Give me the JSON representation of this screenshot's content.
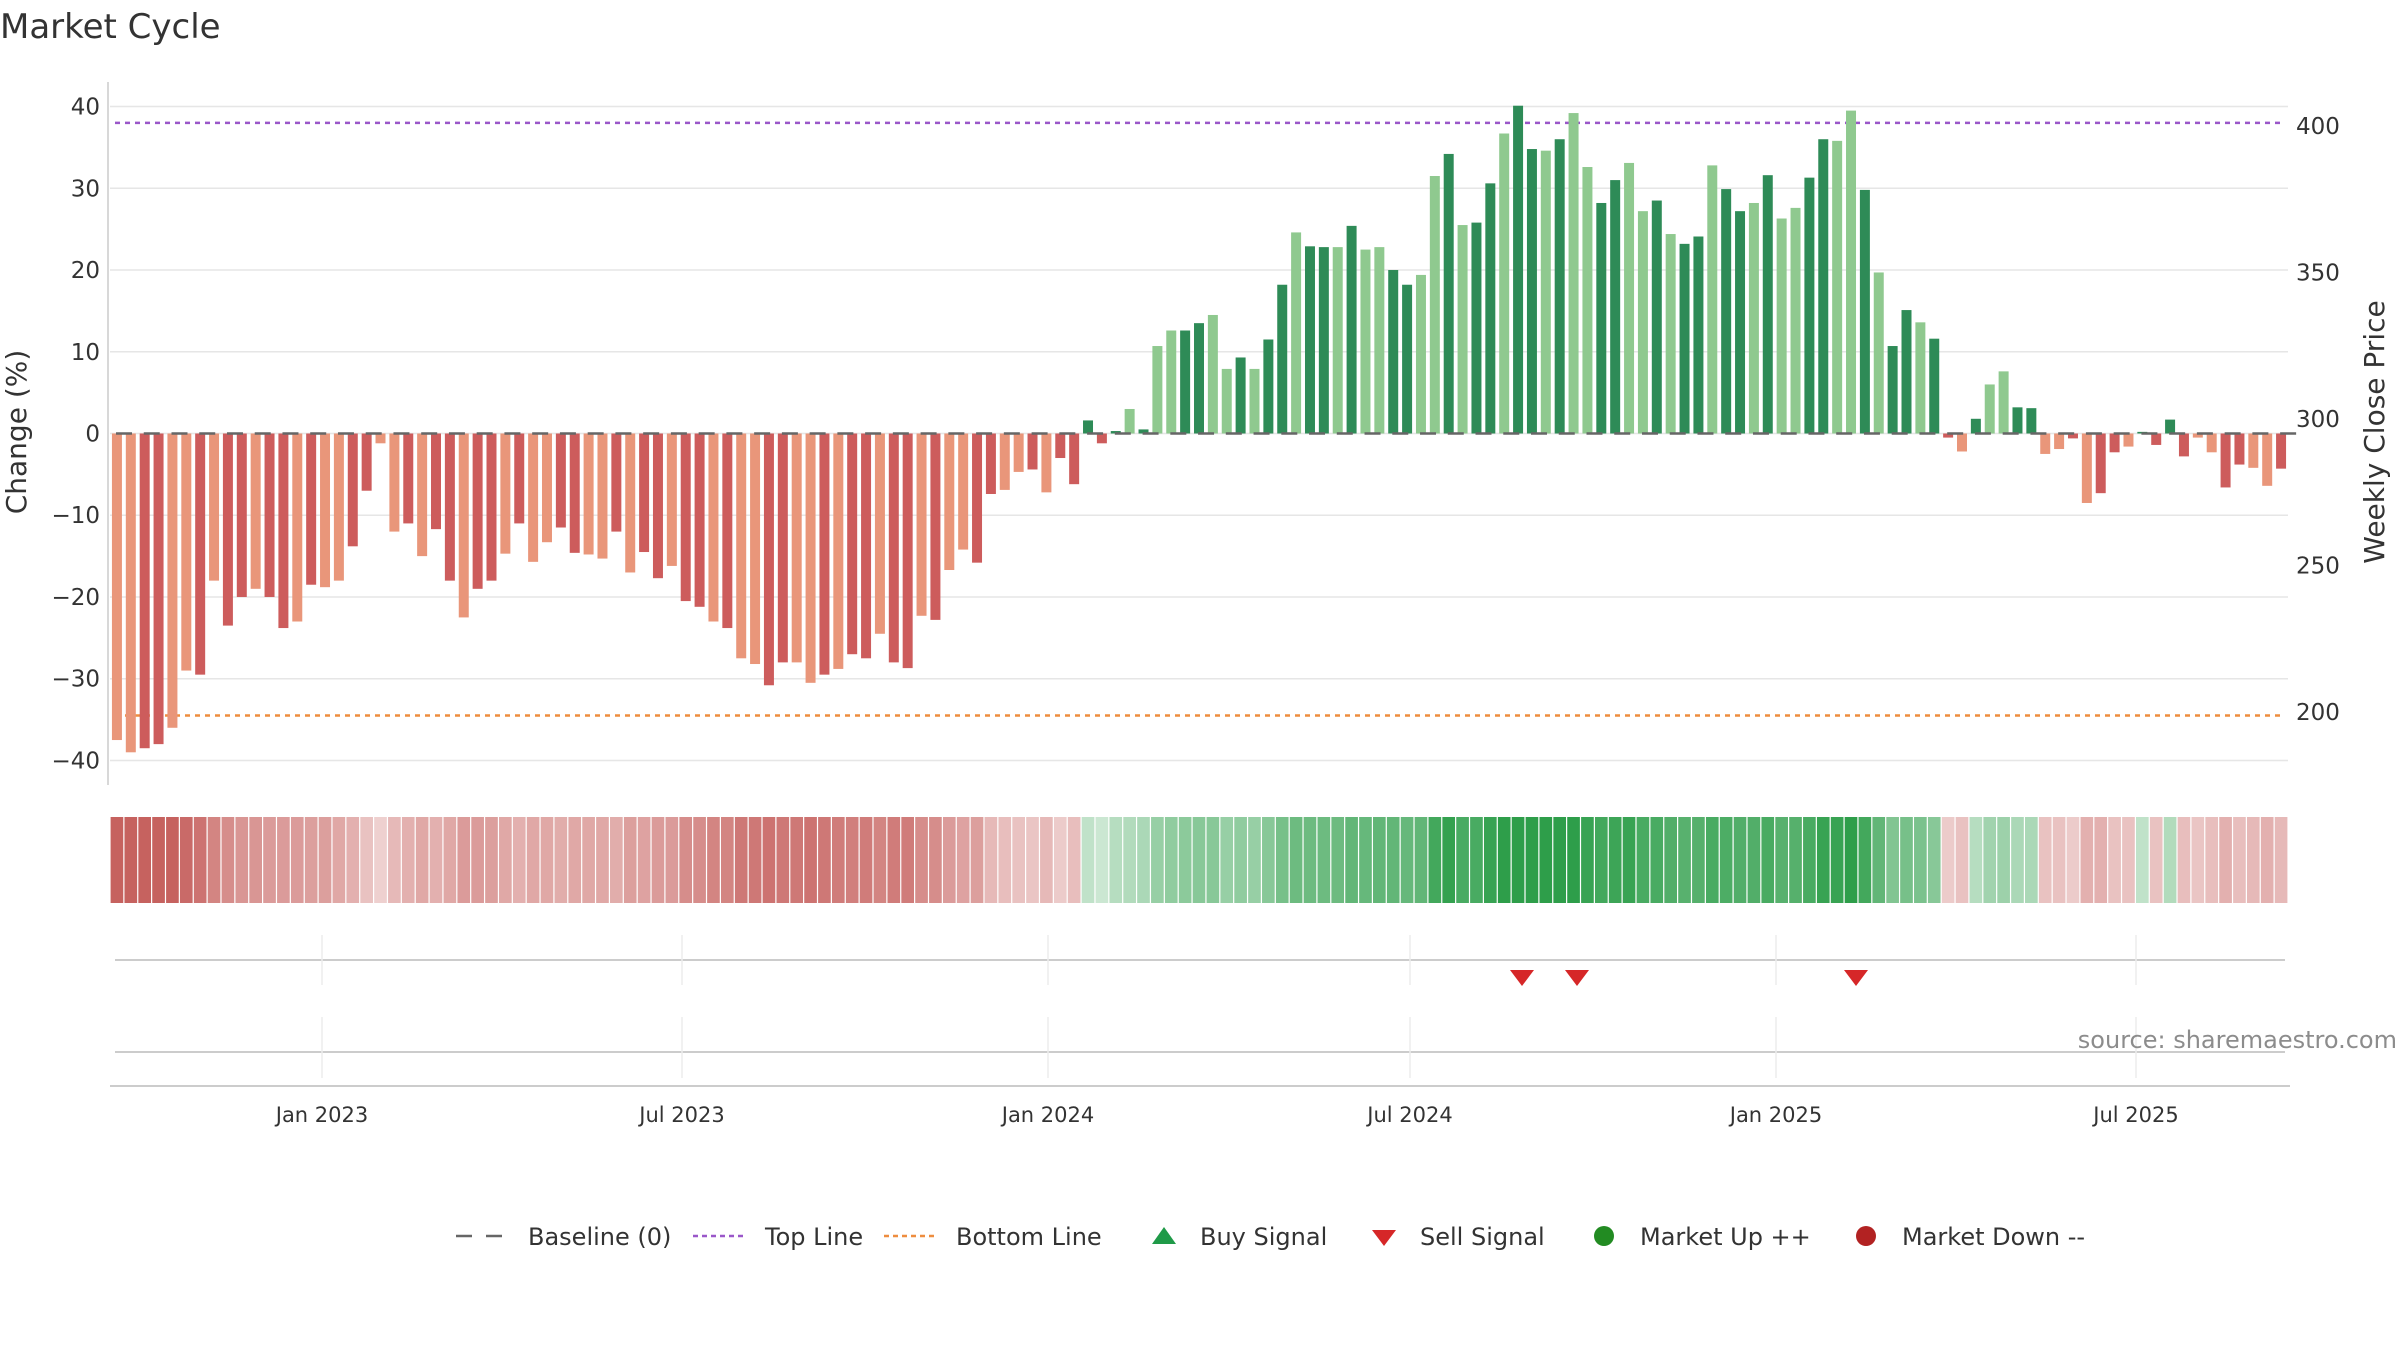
{
  "chart_data": {
    "type": "bar",
    "title": "Market Cycle",
    "ylabel": "Change (%)",
    "y2label": "Weekly Close Price",
    "ylim": [
      -43,
      43
    ],
    "y2lim": [
      175,
      415
    ],
    "yticks": [
      40,
      30,
      20,
      10,
      0,
      -10,
      -20,
      -30,
      -40
    ],
    "y2ticks": [
      400,
      350,
      300,
      250,
      200
    ],
    "x_ticks": [
      "Jan 2023",
      "Jul 2023",
      "Jan 2024",
      "Jul 2024",
      "Jan 2025",
      "Jul 2025"
    ],
    "grid": true,
    "top_line": 38,
    "bottom_line": -34.5,
    "baseline": 0,
    "change_values": [
      -37.5,
      -39,
      -38.5,
      -38,
      -36,
      -29,
      -29.5,
      -18,
      -23.5,
      -20,
      -19,
      -20,
      -23.8,
      -23,
      -18.5,
      -18.8,
      -18,
      -13.8,
      -7,
      -1.2,
      -12,
      -11,
      -15,
      -11.7,
      -18,
      -22.5,
      -19,
      -18,
      -14.7,
      -11,
      -15.7,
      -13.3,
      -11.5,
      -14.6,
      -14.8,
      -15.3,
      -12,
      -17,
      -14.5,
      -17.7,
      -16.2,
      -20.5,
      -21.2,
      -23,
      -23.8,
      -27.5,
      -28.2,
      -30.8,
      -28,
      -28,
      -30.5,
      -29.5,
      -28.8,
      -27,
      -27.5,
      -24.5,
      -28,
      -28.7,
      -22.3,
      -22.8,
      -16.7,
      -14.2,
      -15.8,
      -7.4,
      -6.9,
      -4.7,
      -4.4,
      -7.2,
      -3,
      -6.2,
      1.6,
      -1.2,
      0.3,
      3,
      0.5,
      10.7,
      12.6,
      12.6,
      13.5,
      14.5,
      7.9,
      9.3,
      7.9,
      11.5,
      18.2,
      24.6,
      22.9,
      22.8,
      22.8,
      25.4,
      22.5,
      22.8,
      20,
      18.2,
      19.4,
      31.5,
      34.2,
      25.5,
      25.8,
      30.6,
      36.7,
      40.1,
      34.8,
      34.6,
      36,
      39.2,
      32.6,
      28.2,
      31,
      33.1,
      27.2,
      28.5,
      24.4,
      23.2,
      24.1,
      32.8,
      29.9,
      27.2,
      28.2,
      31.6,
      26.3,
      27.6,
      31.3,
      36,
      35.8,
      39.5,
      29.8,
      19.7,
      10.7,
      15.1,
      13.6,
      11.6,
      -0.5,
      -2.2,
      1.8,
      6,
      7.6,
      3.2,
      3.1,
      -2.5,
      -1.9,
      -0.6,
      -8.5,
      -7.3,
      -2.3,
      -1.6,
      0.2,
      -1.4,
      1.7,
      -2.8,
      -0.5,
      -2.3,
      -6.6,
      -3.8,
      -4.2,
      -6.4,
      -4.3
    ],
    "cycle_strength": [
      -0.75,
      -0.75,
      -0.75,
      -0.75,
      -0.75,
      -0.7,
      -0.65,
      -0.55,
      -0.5,
      -0.45,
      -0.45,
      -0.42,
      -0.42,
      -0.42,
      -0.4,
      -0.4,
      -0.35,
      -0.3,
      -0.2,
      -0.12,
      -0.25,
      -0.3,
      -0.35,
      -0.3,
      -0.35,
      -0.42,
      -0.42,
      -0.4,
      -0.35,
      -0.3,
      -0.35,
      -0.35,
      -0.32,
      -0.35,
      -0.35,
      -0.35,
      -0.32,
      -0.4,
      -0.38,
      -0.42,
      -0.42,
      -0.5,
      -0.5,
      -0.55,
      -0.55,
      -0.62,
      -0.62,
      -0.65,
      -0.62,
      -0.62,
      -0.65,
      -0.62,
      -0.6,
      -0.58,
      -0.6,
      -0.55,
      -0.6,
      -0.6,
      -0.5,
      -0.5,
      -0.42,
      -0.38,
      -0.4,
      -0.25,
      -0.22,
      -0.2,
      -0.18,
      -0.25,
      -0.15,
      -0.22,
      0.15,
      0.1,
      0.2,
      0.22,
      0.25,
      0.35,
      0.38,
      0.4,
      0.42,
      0.42,
      0.35,
      0.38,
      0.35,
      0.42,
      0.5,
      0.55,
      0.55,
      0.55,
      0.55,
      0.6,
      0.58,
      0.6,
      0.6,
      0.58,
      0.6,
      0.75,
      0.82,
      0.72,
      0.72,
      0.8,
      0.85,
      0.9,
      0.85,
      0.85,
      0.88,
      0.9,
      0.8,
      0.75,
      0.78,
      0.8,
      0.72,
      0.72,
      0.68,
      0.65,
      0.66,
      0.72,
      0.7,
      0.68,
      0.68,
      0.72,
      0.65,
      0.66,
      0.72,
      0.8,
      0.8,
      0.85,
      0.75,
      0.6,
      0.45,
      0.5,
      0.48,
      0.42,
      -0.15,
      -0.2,
      0.2,
      0.3,
      0.32,
      0.25,
      0.25,
      -0.2,
      -0.2,
      -0.15,
      -0.3,
      -0.3,
      -0.2,
      -0.2,
      0.15,
      -0.2,
      0.22,
      -0.22,
      -0.18,
      -0.22,
      -0.3,
      -0.22,
      -0.25,
      -0.3,
      -0.25
    ],
    "sell_signals": [
      "2024-09",
      "2024-10",
      "2025-02"
    ],
    "legend": [
      "Baseline (0)",
      "Top Line",
      "Bottom Line",
      "Buy Signal",
      "Sell Signal",
      "Market Up ++",
      "Market Down --"
    ],
    "legend_position": "bottom-center",
    "source": "source: sharemaestro.com",
    "colors": {
      "neg_dark": "#cd5c5c",
      "neg_light": "#e9967a",
      "pos_dark": "#2e8b57",
      "pos_light": "#8fc98f",
      "top_line": "#9a57c9",
      "bottom_line": "#ee8d3f",
      "sell": "#d62728",
      "buy": "#1f9a48",
      "market_up": "#228b22",
      "market_down": "#b22222"
    }
  }
}
